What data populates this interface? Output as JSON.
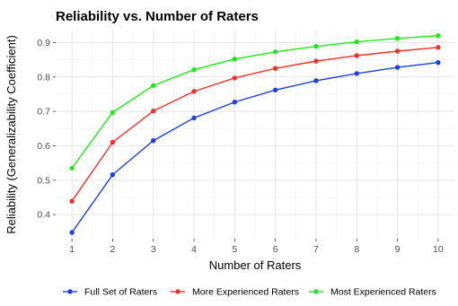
{
  "chart_data": {
    "type": "line",
    "title": "Reliability vs. Number of Raters",
    "xlabel": "Number of Raters",
    "ylabel": "Reliability (Generalizability Coefficient)",
    "x": [
      1,
      2,
      3,
      4,
      5,
      6,
      7,
      8,
      9,
      10
    ],
    "xlim": [
      0.6,
      10.4
    ],
    "ylim": [
      0.33,
      0.935
    ],
    "x_ticks": [
      "1",
      "2",
      "3",
      "4",
      "5",
      "6",
      "7",
      "8",
      "9",
      "10"
    ],
    "y_ticks": [
      "0.4",
      "0.5",
      "0.6",
      "0.7",
      "0.8",
      "0.9"
    ],
    "grid": true,
    "legend_position": "bottom",
    "series": [
      {
        "name": "Full Set of Raters",
        "color": "#1f3fe0",
        "values": [
          0.348,
          0.516,
          0.615,
          0.681,
          0.727,
          0.762,
          0.789,
          0.81,
          0.828,
          0.842
        ]
      },
      {
        "name": "More Experienced Raters",
        "color": "#f0312c",
        "values": [
          0.439,
          0.61,
          0.701,
          0.758,
          0.797,
          0.825,
          0.846,
          0.862,
          0.875,
          0.886
        ]
      },
      {
        "name": "Most Experienced Raters",
        "color": "#22e61e",
        "values": [
          0.535,
          0.697,
          0.775,
          0.821,
          0.852,
          0.873,
          0.889,
          0.902,
          0.912,
          0.92
        ]
      }
    ]
  }
}
